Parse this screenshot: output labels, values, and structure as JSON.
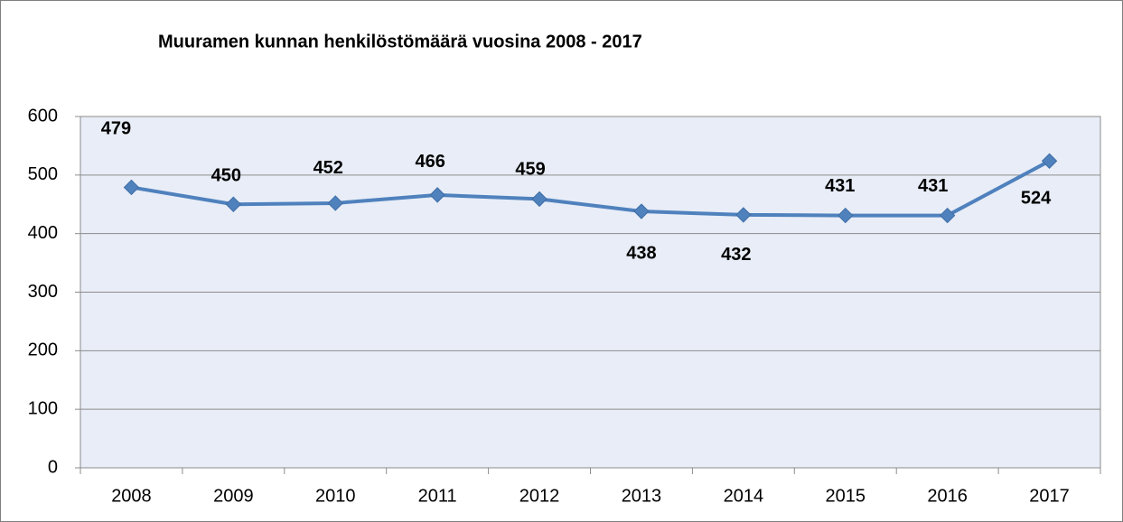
{
  "chart_data": {
    "type": "line",
    "title": "Muuramen kunnan henkilöstömäärä vuosina 2008 - 2017",
    "categories": [
      "2008",
      "2009",
      "2010",
      "2011",
      "2012",
      "2013",
      "2014",
      "2015",
      "2016",
      "2017"
    ],
    "values": [
      479,
      450,
      452,
      466,
      459,
      438,
      432,
      431,
      431,
      524
    ],
    "color": "#4f81bd",
    "ylim": [
      0,
      600
    ],
    "yticks": [
      0,
      100,
      200,
      300,
      400,
      500,
      600
    ],
    "grid": true
  }
}
